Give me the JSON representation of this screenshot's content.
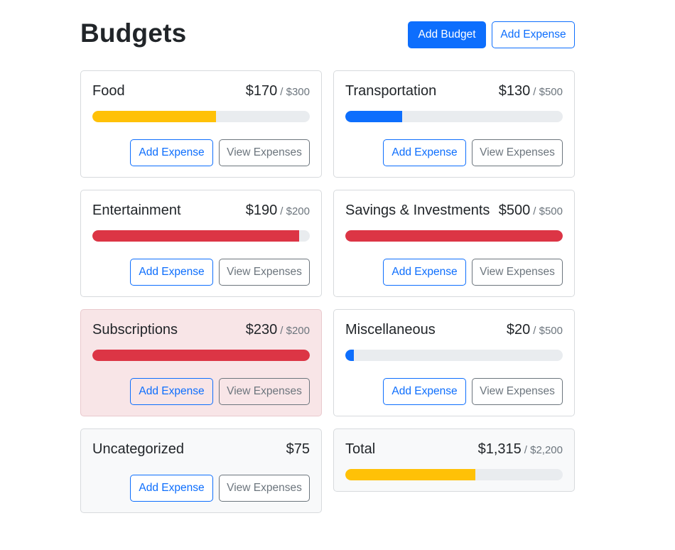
{
  "header": {
    "title": "Budgets",
    "add_budget_label": "Add Budget",
    "add_expense_label": "Add Expense"
  },
  "colors": {
    "primary": "#0d6efd",
    "warning": "#ffc107",
    "danger": "#dc3545",
    "track": "#e9ecef",
    "danger_bg": "#f8e5e7"
  },
  "budgets": [
    {
      "name": "Food",
      "amount": "$170",
      "max": "/ $300",
      "progress": 0.567,
      "status": "warning",
      "add_label": "Add Expense",
      "view_label": "View Expenses"
    },
    {
      "name": "Transportation",
      "amount": "$130",
      "max": "/ $500",
      "progress": 0.26,
      "status": "primary",
      "add_label": "Add Expense",
      "view_label": "View Expenses"
    },
    {
      "name": "Entertainment",
      "amount": "$190",
      "max": "/ $200",
      "progress": 0.95,
      "status": "danger",
      "add_label": "Add Expense",
      "view_label": "View Expenses"
    },
    {
      "name": "Savings & Investments",
      "amount": "$500",
      "max": "/ $500",
      "progress": 1.0,
      "status": "danger",
      "add_label": "Add Expense",
      "view_label": "View Expenses"
    },
    {
      "name": "Subscriptions",
      "amount": "$230",
      "max": "/ $200",
      "progress": 1.0,
      "status": "danger",
      "over_budget": true,
      "add_label": "Add Expense",
      "view_label": "View Expenses"
    },
    {
      "name": "Miscellaneous",
      "amount": "$20",
      "max": "/ $500",
      "progress": 0.04,
      "status": "primary",
      "add_label": "Add Expense",
      "view_label": "View Expenses"
    }
  ],
  "uncategorized": {
    "name": "Uncategorized",
    "amount": "$75",
    "add_label": "Add Expense",
    "view_label": "View Expenses"
  },
  "total": {
    "name": "Total",
    "amount": "$1,315",
    "max": "/ $2,200",
    "progress": 0.598,
    "status": "warning"
  }
}
